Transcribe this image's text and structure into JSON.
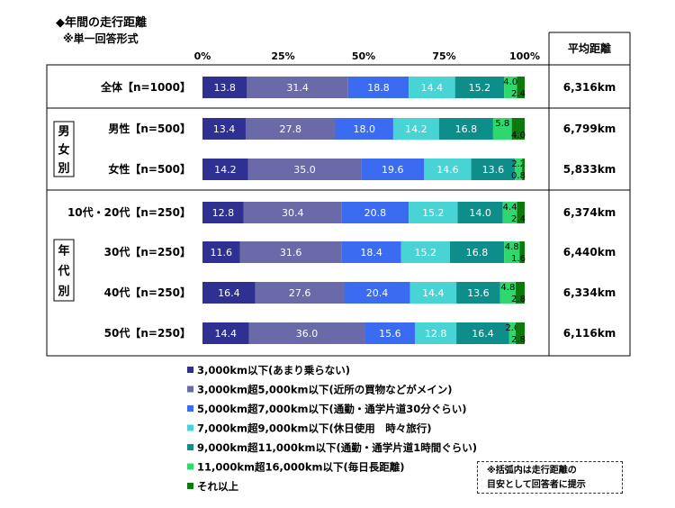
{
  "title": "◆年間の走行距離",
  "subtitle": "※単一回答形式",
  "note_lines": [
    "※括弧内は走行距離の",
    "目安として回答者に提示"
  ],
  "chart_data": {
    "type": "bar",
    "orientation": "horizontal",
    "stacked": "percent",
    "axis_ticks": [
      "0%",
      "25%",
      "50%",
      "75%",
      "100%"
    ],
    "xlim": [
      0,
      100
    ],
    "grid": false,
    "legend_position": "bottom",
    "right_column_header": "平均距離",
    "categories": [
      "全体【n=1000】",
      "男性【n=500】",
      "女性【n=500】",
      "10代・20代【n=250】",
      "30代【n=250】",
      "40代【n=250】",
      "50代【n=250】"
    ],
    "groups": [
      {
        "label": "男女別",
        "members": [
          "男性【n=500】",
          "女性【n=500】"
        ]
      },
      {
        "label": "年代別",
        "members": [
          "10代・20代【n=250】",
          "30代【n=250】",
          "40代【n=250】",
          "50代【n=250】"
        ]
      }
    ],
    "averages": [
      "6,316km",
      "6,799km",
      "5,833km",
      "6,374km",
      "6,440km",
      "6,334km",
      "6,116km"
    ],
    "series": [
      {
        "name": "3,000km以下(あまり乗らない)",
        "color": "#2e3192",
        "values": [
          13.8,
          13.4,
          14.2,
          12.8,
          11.6,
          16.4,
          14.4
        ]
      },
      {
        "name": "3,000km超5,000km以下(近所の買物などがメイン)",
        "color": "#6a6aa8",
        "values": [
          31.4,
          27.8,
          35.0,
          30.4,
          31.6,
          27.6,
          36.0
        ]
      },
      {
        "name": "5,000km超7,000km以下(通勤・通学片道30分ぐらい)",
        "color": "#3a6bf0",
        "values": [
          18.8,
          18.0,
          19.6,
          20.8,
          18.4,
          20.4,
          15.6
        ]
      },
      {
        "name": "7,000km超9,000km以下(休日使用　時々旅行)",
        "color": "#48d4d4",
        "values": [
          14.4,
          14.2,
          14.6,
          15.2,
          15.2,
          14.4,
          12.8
        ]
      },
      {
        "name": "9,000km超11,000km以下(通勤・通学片道1時間ぐらい)",
        "color": "#0e8e8a",
        "values": [
          15.2,
          16.8,
          13.6,
          14.0,
          16.8,
          13.6,
          16.4
        ]
      },
      {
        "name": "11,000km超16,000km以下(毎日長距離)",
        "color": "#2fd86e",
        "values": [
          4.0,
          5.8,
          2.2,
          4.4,
          4.8,
          4.8,
          2.0
        ]
      },
      {
        "name": "それ以上",
        "color": "#0b7a0b",
        "values": [
          2.4,
          4.0,
          0.8,
          2.4,
          1.6,
          2.8,
          2.8
        ]
      }
    ]
  }
}
